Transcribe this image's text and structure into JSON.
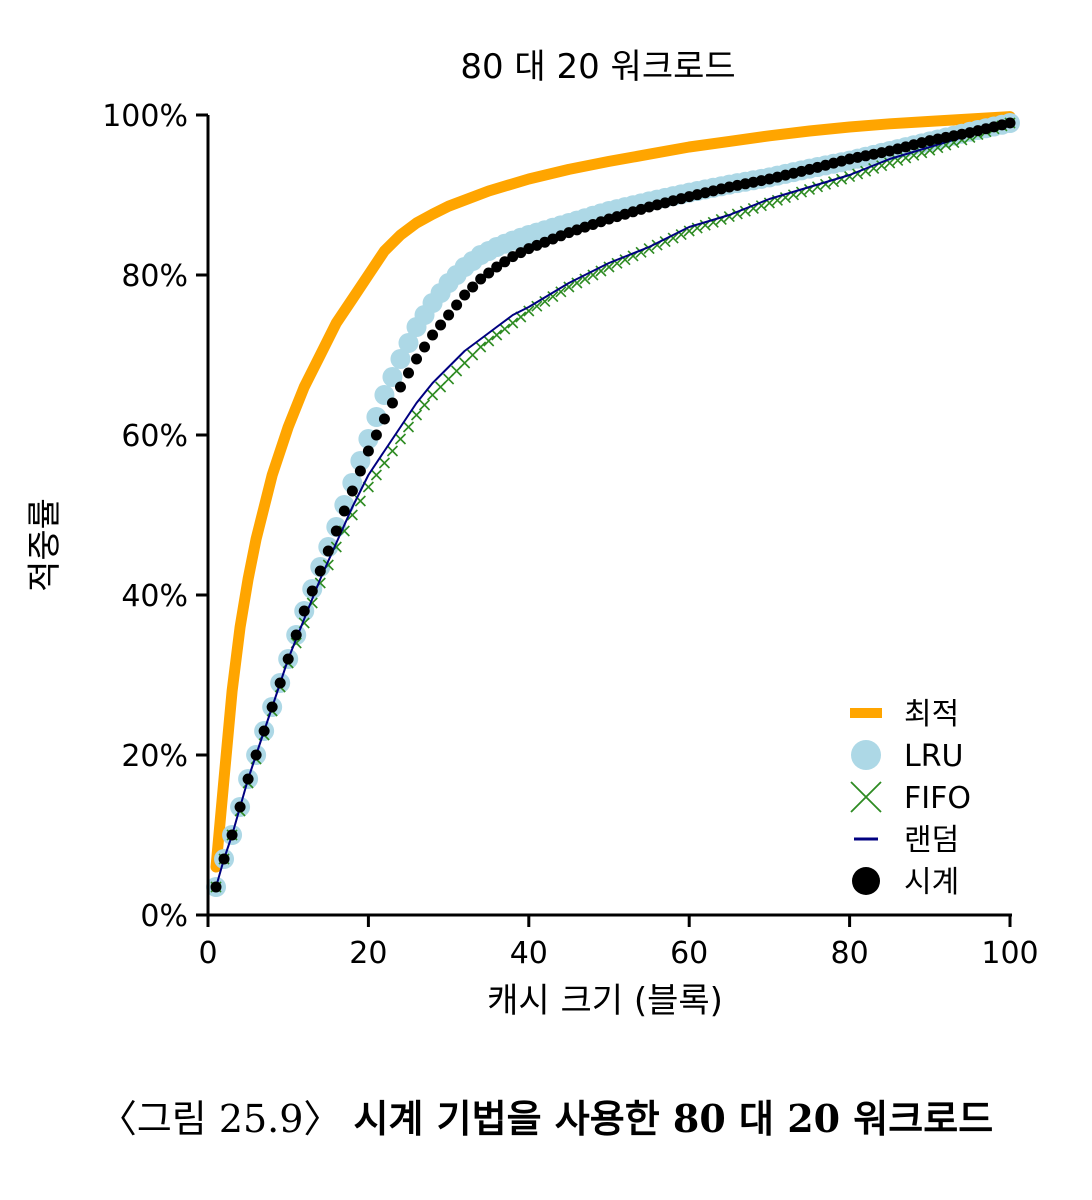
{
  "chart_data": {
    "type": "line",
    "title": "80 대 20 워크로드",
    "xlabel": "캐시 크기 (블록)",
    "ylabel": "적중률",
    "xlim": [
      0,
      100
    ],
    "ylim": [
      0,
      100
    ],
    "xticks": [
      "0",
      "20",
      "40",
      "60",
      "80",
      "100"
    ],
    "yticks": [
      "0%",
      "20%",
      "40%",
      "60%",
      "80%",
      "100%"
    ],
    "legend_position": "bottom-right",
    "grid": false,
    "series": [
      {
        "name": "최적",
        "color": "#FFA500",
        "marker": "thick-line",
        "x": [
          1,
          2,
          3,
          4,
          5,
          6,
          8,
          10,
          12,
          14,
          16,
          18,
          20,
          22,
          24,
          26,
          28,
          30,
          35,
          40,
          45,
          50,
          55,
          60,
          65,
          70,
          75,
          80,
          85,
          90,
          95,
          100
        ],
        "y": [
          6,
          17,
          28,
          36,
          42,
          47,
          55,
          61,
          66,
          70,
          74,
          77,
          80,
          83,
          85,
          86.5,
          87.6,
          88.6,
          90.5,
          92,
          93.2,
          94.2,
          95.1,
          96,
          96.7,
          97.4,
          98,
          98.5,
          98.9,
          99.2,
          99.5,
          99.8
        ]
      },
      {
        "name": "LRU",
        "color": "#ADD8E6",
        "marker": "big-circle",
        "x": [
          1,
          2,
          3,
          4,
          5,
          6,
          7,
          8,
          9,
          10,
          12,
          14,
          16,
          18,
          20,
          22,
          24,
          26,
          28,
          30,
          32,
          34,
          36,
          38,
          40,
          45,
          50,
          55,
          60,
          65,
          70,
          75,
          80,
          85,
          90,
          95,
          100
        ],
        "y": [
          3.5,
          7,
          10,
          13.5,
          17,
          20,
          23,
          26,
          29,
          32,
          38,
          43.5,
          48.5,
          54,
          59.5,
          65,
          69.5,
          73.5,
          76.5,
          79,
          81,
          82.5,
          83.5,
          84.3,
          85,
          86.5,
          88,
          89.2,
          90.3,
          91.3,
          92.2,
          93.3,
          94.3,
          95.5,
          96.7,
          97.9,
          99
        ]
      },
      {
        "name": "FIFO",
        "color": "#2E8B22",
        "marker": "x",
        "x": [
          1,
          2,
          3,
          4,
          5,
          6,
          7,
          8,
          9,
          10,
          12,
          14,
          16,
          18,
          20,
          22,
          24,
          26,
          28,
          30,
          32,
          34,
          36,
          38,
          40,
          45,
          50,
          55,
          60,
          65,
          70,
          75,
          80,
          85,
          90,
          95,
          100
        ],
        "y": [
          3.5,
          7,
          10,
          13,
          16.5,
          19.5,
          22.5,
          25.5,
          28.5,
          31.5,
          36.5,
          41.5,
          46,
          50,
          53.5,
          56.5,
          59.5,
          62.5,
          65,
          67,
          69,
          71,
          72.5,
          74,
          75.5,
          78.5,
          81,
          83.3,
          85.5,
          87.3,
          89,
          90.7,
          92.3,
          94,
          95.6,
          97.2,
          99
        ]
      },
      {
        "name": "랜덤",
        "color": "#000080",
        "marker": "thin-line",
        "x": [
          1,
          2,
          3,
          4,
          5,
          6,
          7,
          8,
          9,
          10,
          12,
          14,
          16,
          18,
          20,
          22,
          24,
          26,
          28,
          30,
          32,
          34,
          36,
          38,
          40,
          45,
          50,
          55,
          60,
          65,
          70,
          75,
          80,
          85,
          90,
          95,
          100
        ],
        "y": [
          3.5,
          7,
          10,
          13.5,
          17,
          20,
          23,
          26,
          29,
          32,
          37,
          42,
          46.5,
          51,
          55,
          58,
          61,
          64,
          66.5,
          68.5,
          70.5,
          72,
          73.5,
          75,
          76,
          79,
          81.5,
          83.5,
          86,
          87.5,
          89.5,
          91,
          92.5,
          94.5,
          96,
          97.5,
          99
        ]
      },
      {
        "name": "시계",
        "color": "#000000",
        "marker": "dot",
        "x": [
          1,
          2,
          3,
          4,
          5,
          6,
          7,
          8,
          9,
          10,
          12,
          14,
          16,
          18,
          20,
          22,
          24,
          26,
          28,
          30,
          32,
          34,
          36,
          38,
          40,
          45,
          50,
          55,
          60,
          65,
          70,
          75,
          80,
          85,
          90,
          95,
          100
        ],
        "y": [
          3.5,
          7,
          10,
          13.5,
          17,
          20,
          23,
          26,
          29,
          32,
          38,
          43,
          48,
          53,
          58,
          62,
          66,
          69.5,
          72.5,
          75,
          77.5,
          79.5,
          81,
          82.3,
          83.3,
          85.3,
          87,
          88.5,
          89.8,
          91,
          92,
          93.2,
          94.5,
          95.5,
          96.8,
          97.8,
          99
        ]
      }
    ]
  },
  "caption": {
    "prefix": "〈그림 25.9〉",
    "text": "시계 기법을 사용한 80 대 20 워크로드"
  }
}
